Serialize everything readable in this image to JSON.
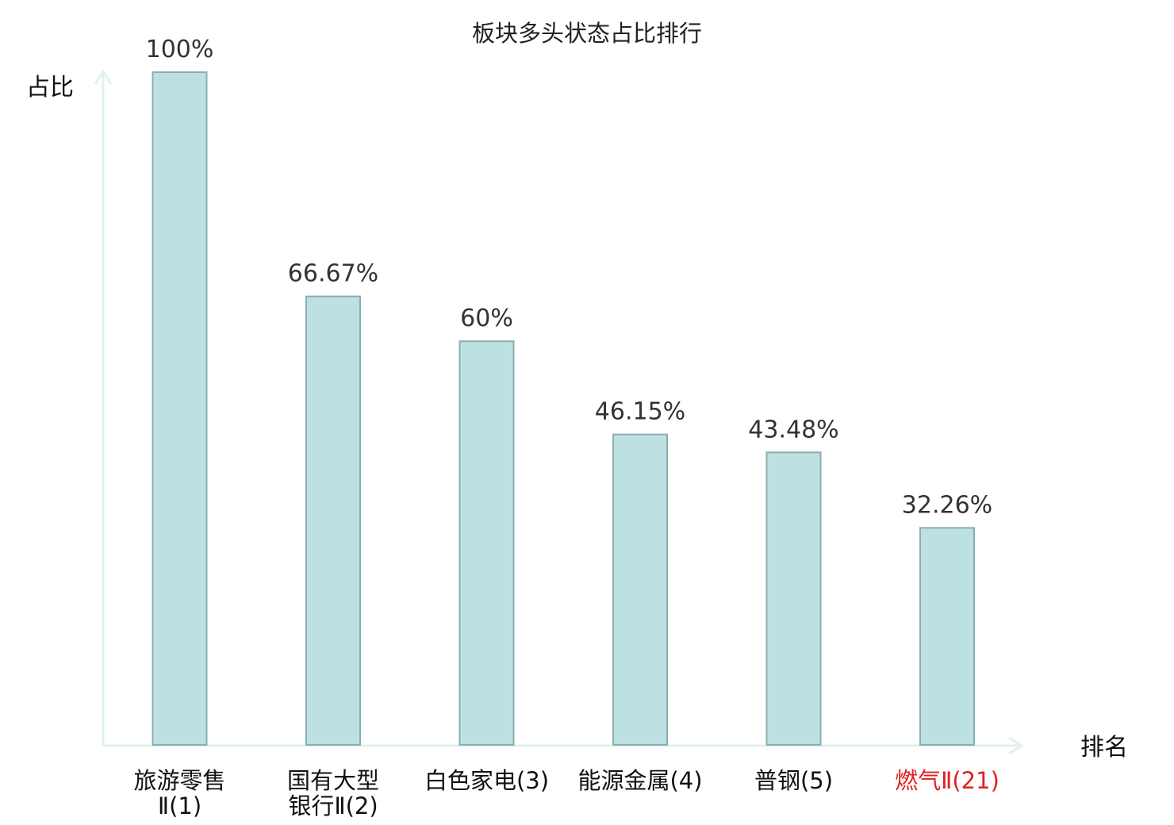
{
  "chart_data": {
    "type": "bar",
    "title": "板块多头状态占比排行",
    "ylabel": "占比",
    "xlabel": "排名",
    "ylim": [
      0,
      100
    ],
    "categories": [
      {
        "lines": [
          "旅游零售",
          "Ⅱ(1)"
        ],
        "highlight": false
      },
      {
        "lines": [
          "国有大型",
          "银行Ⅱ(2)"
        ],
        "highlight": false
      },
      {
        "lines": [
          "白色家电(3)"
        ],
        "highlight": false
      },
      {
        "lines": [
          "能源金属(4)"
        ],
        "highlight": false
      },
      {
        "lines": [
          "普钢(5)"
        ],
        "highlight": false
      },
      {
        "lines": [
          "燃气Ⅱ(21)"
        ],
        "highlight": true
      }
    ],
    "values": [
      100,
      66.67,
      60,
      46.15,
      43.48,
      32.26
    ],
    "value_labels": [
      "100%",
      "66.67%",
      "60%",
      "46.15%",
      "43.48%",
      "32.26%"
    ],
    "grid": false,
    "colors": {
      "bar_fill": "#bde0e3",
      "bar_stroke": "#8aaeb0",
      "axis": "#dff2ef",
      "highlight_text": "#e02020"
    }
  }
}
